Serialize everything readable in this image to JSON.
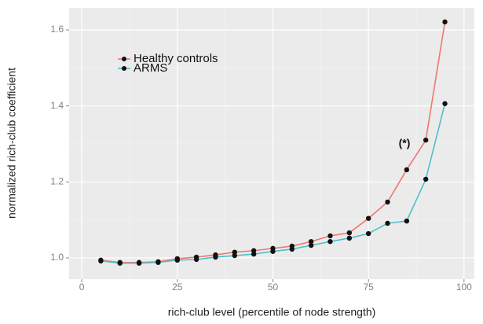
{
  "chart_data": {
    "type": "line",
    "x_label": "rich-club level (percentile of node strength)",
    "y_label": "normalized rich-club coefficient",
    "x": [
      5,
      10,
      15,
      20,
      25,
      30,
      35,
      40,
      45,
      50,
      55,
      60,
      65,
      70,
      75,
      80,
      85,
      90,
      95
    ],
    "series": [
      {
        "name": "Healthy controls",
        "color": "#f0786e",
        "values": [
          0.994,
          0.988,
          0.988,
          0.99,
          0.998,
          1.002,
          1.008,
          1.015,
          1.019,
          1.025,
          1.031,
          1.043,
          1.058,
          1.066,
          1.104,
          1.147,
          1.232,
          1.31,
          1.621
        ]
      },
      {
        "name": "ARMS",
        "color": "#4fbfca",
        "values": [
          0.992,
          0.986,
          0.986,
          0.988,
          0.994,
          0.996,
          1.002,
          1.006,
          1.01,
          1.017,
          1.023,
          1.033,
          1.043,
          1.052,
          1.064,
          1.091,
          1.097,
          1.207,
          1.406
        ]
      }
    ],
    "annotations": [
      "(*)"
    ],
    "xlim": [
      -3.3,
      102.7
    ],
    "xticks": [
      0,
      25,
      50,
      75,
      100
    ],
    "ylim": [
      0.944,
      1.658
    ],
    "yticks": [
      {
        "value": 1,
        "label": "1.0"
      },
      {
        "value": 1.2,
        "label": "1.2"
      },
      {
        "value": 1.4,
        "label": "1.4"
      },
      {
        "value": 1.6,
        "label": "1.6"
      }
    ],
    "grid": true,
    "legend_position": "top-left"
  }
}
